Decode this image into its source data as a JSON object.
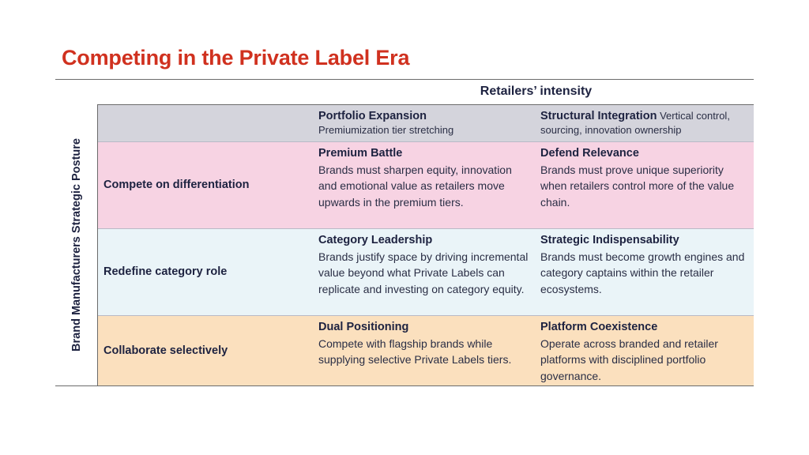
{
  "title": "Competing in the Private Label Era",
  "column_axis_label": "Retailers’ intensity",
  "row_axis_label": "Brand Manufacturers Strategic Posture",
  "columns": [
    {
      "title": "Portfolio Expansion",
      "subtitle": "Premiumization tier stretching"
    },
    {
      "title": "Structural Integration",
      "subtitle": "Vertical control, sourcing, innovation ownership"
    }
  ],
  "rows": [
    {
      "label": "Compete on differentiation",
      "color": "#f7d3e3",
      "cells": [
        {
          "title": "Premium Battle",
          "text": "Brands must sharpen equity, innovation and emotional value as retailers move upwards in the premium tiers."
        },
        {
          "title": "Defend Relevance",
          "text": "Brands must prove unique superiority when retailers control more of the value chain."
        }
      ]
    },
    {
      "label": "Redefine category role",
      "color": "#eaf4f8",
      "cells": [
        {
          "title": "Category Leadership",
          "text": "Brands justify space by driving incremental value beyond what Private Labels can replicate and investing on category equity."
        },
        {
          "title": "Strategic Indispensability",
          "text": "Brands must become growth engines and category captains within the retailer ecosystems."
        }
      ]
    },
    {
      "label": "Collaborate selectively",
      "color": "#fbe0be",
      "cells": [
        {
          "title": "Dual Positioning",
          "text": "Compete with flagship brands while supplying selective Private Labels tiers."
        },
        {
          "title": "Platform Coexistence",
          "text": "Operate across branded and retailer platforms with disciplined portfolio governance."
        }
      ]
    }
  ],
  "colors": {
    "title": "#d0311f",
    "header_band": "#d4d4dc",
    "text": "#1d2240"
  }
}
